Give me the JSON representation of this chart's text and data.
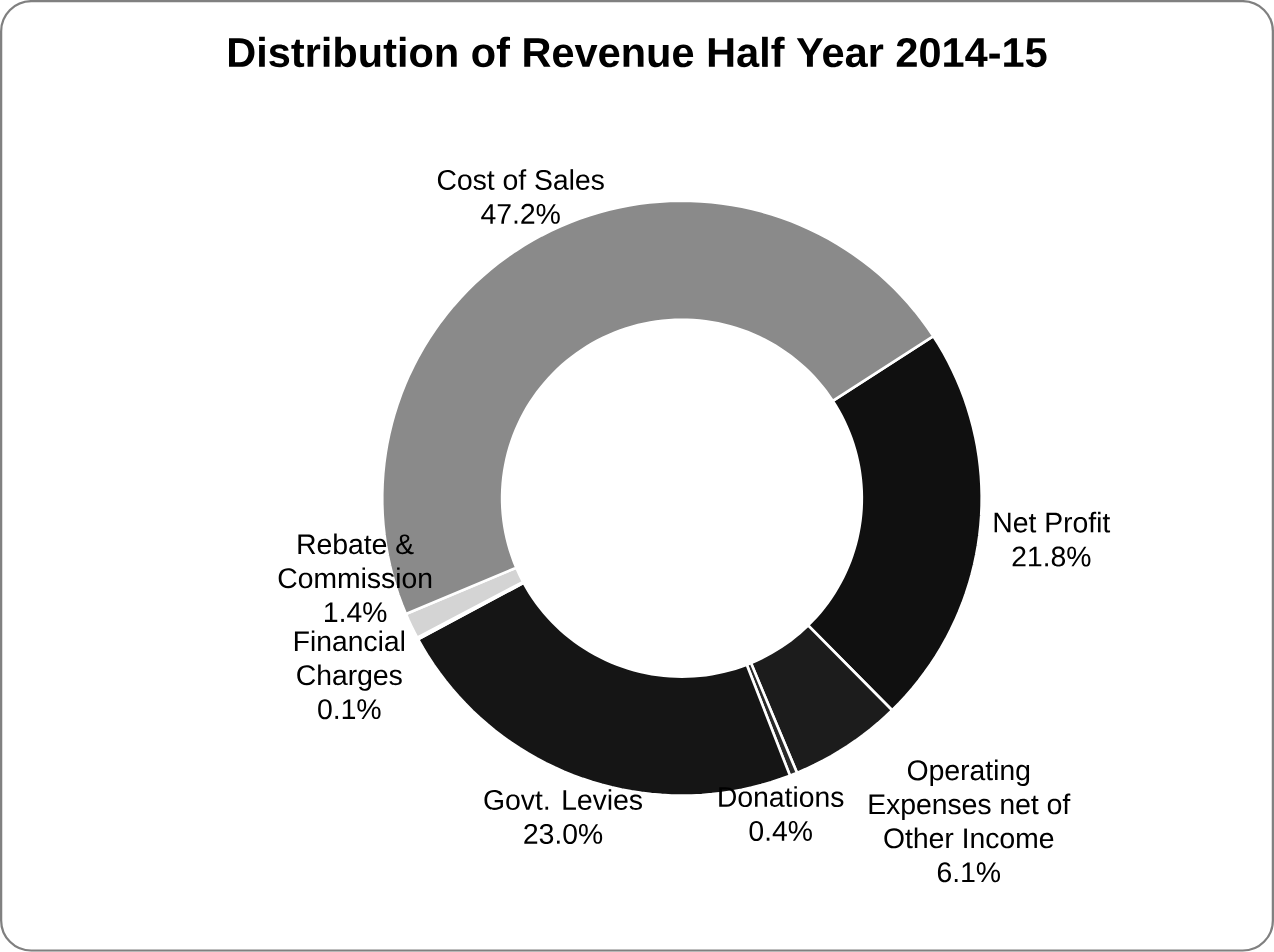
{
  "chart_data": {
    "type": "donut",
    "title": "Distribution of Revenue Half Year 2014-15",
    "categories": [
      "Net Profit",
      "Operating Expenses net of Other Income",
      "Donations",
      "Govt. Levies",
      "Financial Charges",
      "Rebate & Commission",
      "Cost of Sales"
    ],
    "values": [
      21.8,
      6.1,
      0.4,
      23.0,
      0.1,
      1.4,
      47.2
    ],
    "value_labels": [
      "21.8%",
      "6.1%",
      "0.4%",
      "23.0%",
      "0.1%",
      "1.4%",
      "47.2%"
    ],
    "colors": [
      "#101010",
      "#1c1c1c",
      "#2a2a2a",
      "#151515",
      "#3a3a3a",
      "#d4d4d4",
      "#8a8a8a"
    ]
  }
}
